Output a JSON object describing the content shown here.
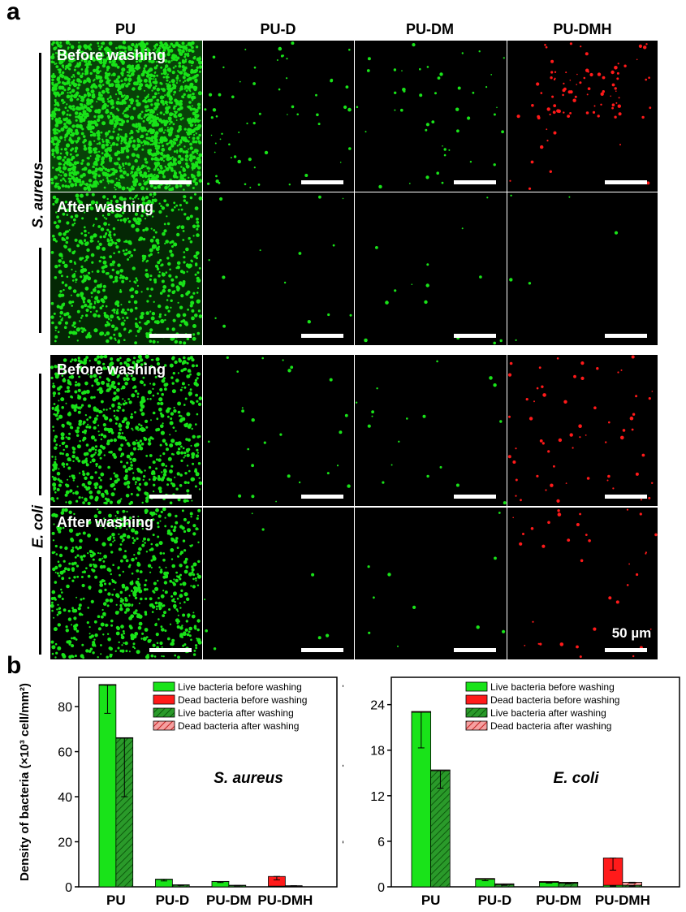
{
  "panel_labels": {
    "a": "a",
    "b": "b"
  },
  "columns": [
    "PU",
    "PU-D",
    "PU-DM",
    "PU-DMH"
  ],
  "species": [
    "S. aureus",
    "E. coli"
  ],
  "row_labels": {
    "before": "Before washing",
    "after": "After washing"
  },
  "scale_label": "50 µm",
  "colors": {
    "live": "#19e319",
    "dead": "#ff1a1a",
    "live_hatch": "#2a9a2a",
    "dead_hatch": "#f4a0a0"
  },
  "chart_data": [
    {
      "type": "bar",
      "annotation": "S. aureus",
      "ylabel": "Density of bacteria (×10³ cell/mm²)",
      "ylim": [
        0,
        93
      ],
      "yticks": [
        0,
        20,
        40,
        60,
        80
      ],
      "categories": [
        "PU",
        "PU-D",
        "PU-DM",
        "PU-DMH"
      ],
      "legend_position": "top-right",
      "series": [
        {
          "name": "Live bacteria before washing",
          "values": [
            89.5,
            3.3,
            2.3,
            0.3
          ],
          "errors": [
            12.5,
            0.7,
            0.4,
            0.1
          ]
        },
        {
          "name": "Dead bacteria before washing",
          "values": [
            0.3,
            0.1,
            0.1,
            4.3
          ],
          "errors": [
            0.0,
            0.0,
            0.0,
            1.5
          ]
        },
        {
          "name": "Live bacteria after washing",
          "values": [
            66.0,
            0.8,
            0.6,
            0.2
          ],
          "errors": [
            26.0,
            0.2,
            0.2,
            0.1
          ]
        },
        {
          "name": "Dead bacteria after washing",
          "values": [
            0.2,
            0.1,
            0.1,
            0.3
          ],
          "errors": [
            0.0,
            0.0,
            0.0,
            0.1
          ]
        }
      ]
    },
    {
      "type": "bar",
      "annotation": "E. coli",
      "ylabel": "Density of bacteria (×10³ cell/mm²)",
      "ylim": [
        0,
        27.6
      ],
      "yticks": [
        0,
        6,
        12,
        18,
        24
      ],
      "categories": [
        "PU",
        "PU-D",
        "PU-DM",
        "PU-DMH"
      ],
      "legend_position": "top-right",
      "series": [
        {
          "name": "Live bacteria before washing",
          "values": [
            23.0,
            1.0,
            0.6,
            0.2
          ],
          "errors": [
            4.7,
            0.2,
            0.1,
            0.1
          ]
        },
        {
          "name": "Dead bacteria before washing",
          "values": [
            0.1,
            0.1,
            0.1,
            3.6
          ],
          "errors": [
            0.0,
            0.0,
            0.0,
            1.6
          ]
        },
        {
          "name": "Live bacteria after washing",
          "values": [
            15.3,
            0.3,
            0.5,
            0.2
          ],
          "errors": [
            2.3,
            0.1,
            0.1,
            0.1
          ]
        },
        {
          "name": "Dead bacteria after washing",
          "values": [
            0.1,
            0.1,
            0.1,
            0.4
          ],
          "errors": [
            0.0,
            0.0,
            0.0,
            0.1
          ]
        }
      ]
    }
  ]
}
